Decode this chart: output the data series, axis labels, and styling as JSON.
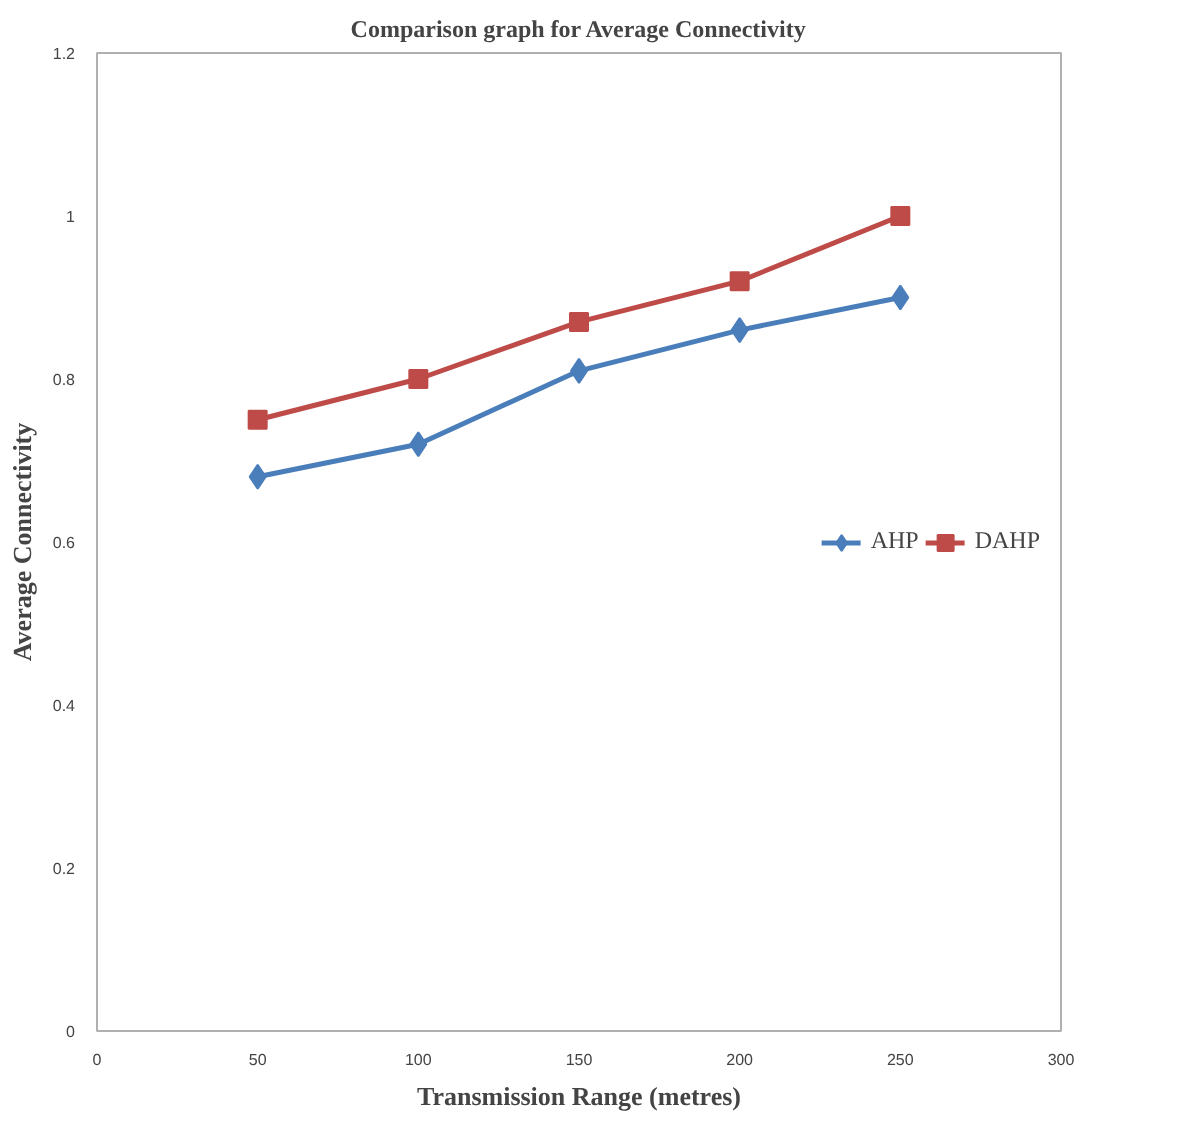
{
  "chart_data": {
    "type": "line",
    "title": "Comparison graph for Average Connectivity",
    "xlabel": "Transmission Range (metres)",
    "ylabel": "Average Connectivity",
    "x": [
      50,
      100,
      150,
      200,
      250
    ],
    "series": [
      {
        "name": "AHP",
        "color": "#4a7ebb",
        "marker": "diamond",
        "values": [
          0.68,
          0.72,
          0.81,
          0.86,
          0.9
        ]
      },
      {
        "name": "DAHP",
        "color": "#be4b48",
        "marker": "square",
        "values": [
          0.75,
          0.8,
          0.87,
          0.92,
          1.0
        ]
      }
    ],
    "xlim": [
      0,
      300
    ],
    "xticks": [
      0,
      50,
      100,
      150,
      200,
      250,
      300
    ],
    "ylim": [
      0,
      1.2
    ],
    "yticks": [
      0,
      0.2,
      0.4,
      0.6,
      0.8,
      1,
      1.2
    ],
    "grid": false,
    "legend": "right",
    "line_style": "solid"
  }
}
